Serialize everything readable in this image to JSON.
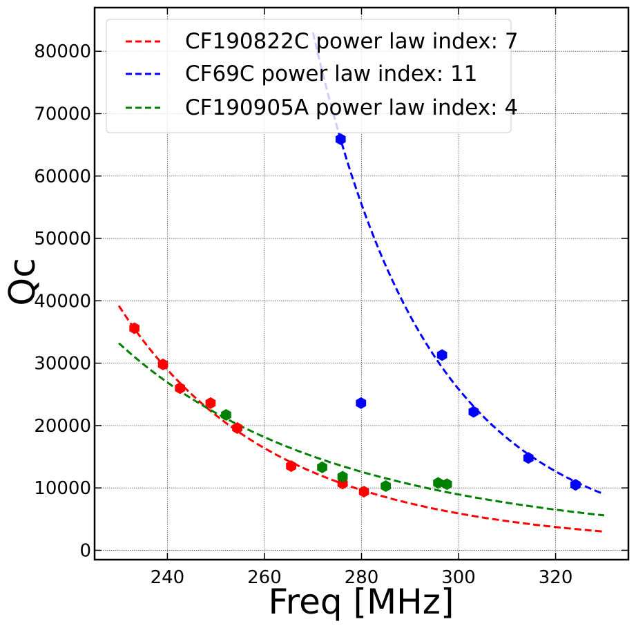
{
  "chart_data": {
    "type": "scatter",
    "title": "",
    "xlabel": "Freq [MHz]",
    "ylabel": "Qc",
    "xlim": [
      225,
      335
    ],
    "ylim": [
      -1500,
      87000
    ],
    "xticks": [
      240,
      260,
      280,
      300,
      320
    ],
    "yticks": [
      0,
      10000,
      20000,
      30000,
      40000,
      50000,
      60000,
      70000,
      80000
    ],
    "grid": true,
    "legend_position": "top-left",
    "series": [
      {
        "name": "CF190822C power law index: 7",
        "color": "#ff0000",
        "points": [
          [
            233.2,
            35600
          ],
          [
            239.1,
            29800
          ],
          [
            242.6,
            26000
          ],
          [
            248.9,
            23600
          ],
          [
            254.4,
            19600
          ],
          [
            265.5,
            13500
          ],
          [
            276.1,
            10700
          ],
          [
            280.5,
            9400
          ]
        ],
        "fit_range": [
          230,
          330
        ],
        "fit_start": 39200,
        "fit_end": 3000
      },
      {
        "name": "CF69C power law index: 11",
        "color": "#0000ff",
        "points": [
          [
            275.7,
            65900
          ],
          [
            279.9,
            23600
          ],
          [
            296.6,
            31300
          ],
          [
            303.1,
            22200
          ],
          [
            314.4,
            14800
          ],
          [
            324.1,
            10500
          ]
        ],
        "fit_range": [
          270,
          330
        ],
        "fit_start": 83000,
        "fit_end": 9000
      },
      {
        "name": "CF190905A power law index: 4",
        "color": "#008000",
        "points": [
          [
            252.1,
            21700
          ],
          [
            271.9,
            13300
          ],
          [
            276.1,
            11800
          ],
          [
            285.0,
            10300
          ],
          [
            295.8,
            10800
          ],
          [
            297.6,
            10600
          ]
        ],
        "fit_range": [
          230,
          330
        ],
        "fit_start": 33200,
        "fit_end": 5600
      }
    ]
  }
}
